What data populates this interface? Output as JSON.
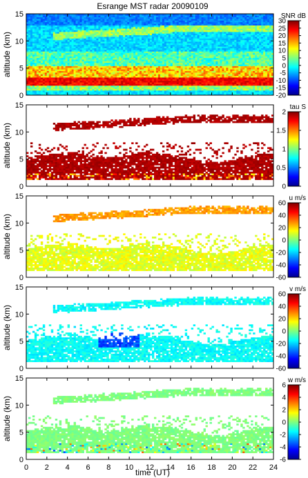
{
  "figure": {
    "title": "Esrange MST radar 20090109",
    "xlabel": "time (UT)"
  },
  "chart_data": [
    {
      "type": "heatmap",
      "ylabel": "altitude (km)",
      "colorbar_label": "SNR dB",
      "x_range": [
        0,
        24
      ],
      "y_range": [
        0,
        15
      ],
      "x_ticks": [
        0,
        2,
        4,
        6,
        8,
        10,
        12,
        14,
        16,
        18,
        20,
        22,
        24
      ],
      "y_ticks": [
        0,
        5,
        10,
        15
      ],
      "clim": [
        -20,
        30
      ],
      "cbar_ticks": [
        -20,
        -15,
        -10,
        -5,
        0,
        5,
        10,
        15,
        20,
        25,
        30
      ],
      "description": "near-full coverage; strong echo band 1.5-3 km, layer near 11-12.5 km"
    },
    {
      "type": "heatmap",
      "ylabel": "altitude (km)",
      "colorbar_label": "tau S",
      "x_range": [
        0,
        24
      ],
      "y_range": [
        0,
        15
      ],
      "x_ticks": [
        0,
        2,
        4,
        6,
        8,
        10,
        12,
        14,
        16,
        18,
        20,
        22,
        24
      ],
      "y_ticks": [
        0,
        5,
        10,
        15
      ],
      "clim": [
        0,
        2
      ],
      "cbar_ticks": [
        0,
        0.5,
        1,
        1.5,
        2
      ],
      "description": "mostly ~2 s (dark red) where data exist"
    },
    {
      "type": "heatmap",
      "ylabel": "altitude (km)",
      "colorbar_label": "u m/s",
      "x_range": [
        0,
        24
      ],
      "y_range": [
        0,
        15
      ],
      "x_ticks": [
        0,
        2,
        4,
        6,
        8,
        10,
        12,
        14,
        16,
        18,
        20,
        22,
        24
      ],
      "y_ticks": [
        0,
        5,
        10,
        15
      ],
      "clim": [
        -60,
        60
      ],
      "cbar_ticks": [
        -60,
        -40,
        -20,
        0,
        20,
        40,
        60
      ],
      "description": "~0-10 m/s at low levels, ~20-30 m/s in upper layer"
    },
    {
      "type": "heatmap",
      "ylabel": "altitude (km)",
      "colorbar_label": "v m/s",
      "x_range": [
        0,
        24
      ],
      "y_range": [
        0,
        15
      ],
      "x_ticks": [
        0,
        2,
        4,
        6,
        8,
        10,
        12,
        14,
        16,
        18,
        20,
        22,
        24
      ],
      "y_ticks": [
        0,
        5,
        10,
        15
      ],
      "clim": [
        -60,
        60
      ],
      "cbar_ticks": [
        -60,
        -40,
        -20,
        0,
        20,
        40,
        60
      ],
      "description": "mostly -20 to -10 m/s; down to ~-40 m/s near 5 km around 08-10 UT"
    },
    {
      "type": "heatmap",
      "ylabel": "altitude (km)",
      "colorbar_label": "w m/s",
      "x_range": [
        0,
        24
      ],
      "y_range": [
        0,
        15
      ],
      "x_ticks": [
        0,
        2,
        4,
        6,
        8,
        10,
        12,
        14,
        16,
        18,
        20,
        22,
        24
      ],
      "y_ticks": [
        0,
        5,
        10,
        15
      ],
      "clim": [
        -6,
        6
      ],
      "cbar_ticks": [
        -6,
        -4,
        -2,
        0,
        2,
        4,
        6
      ],
      "description": "near 0 m/s, fluctuations of +/-2-4 m/s below 3 km"
    }
  ]
}
